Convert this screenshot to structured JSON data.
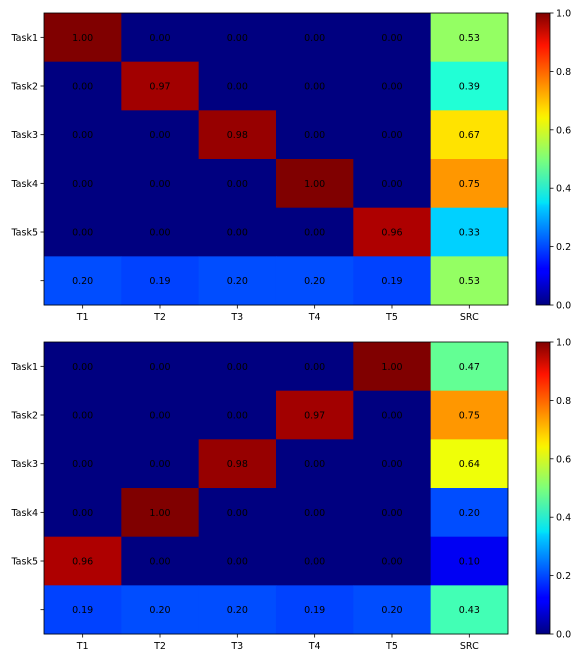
{
  "colorbar": {
    "colormap": "jet",
    "range": [
      0,
      1
    ],
    "tick_labels": [
      "0.0",
      "0.2",
      "0.4",
      "0.6",
      "0.8",
      "1.0"
    ]
  },
  "chart_data": [
    {
      "type": "heatmap",
      "title": "",
      "xlabel": "",
      "ylabel": "",
      "x_categories": [
        "T1",
        "T2",
        "T3",
        "T4",
        "T5",
        "SRC"
      ],
      "y_categories": [
        "Task1",
        "Task2",
        "Task3",
        "Task4",
        "Task5",
        ""
      ],
      "value_range": [
        0,
        1
      ],
      "values": [
        [
          1.0,
          0.0,
          0.0,
          0.0,
          0.0,
          0.53
        ],
        [
          0.0,
          0.97,
          0.0,
          0.0,
          0.0,
          0.39
        ],
        [
          0.0,
          0.0,
          0.98,
          0.0,
          0.0,
          0.67
        ],
        [
          0.0,
          0.0,
          0.0,
          1.0,
          0.0,
          0.75
        ],
        [
          0.0,
          0.0,
          0.0,
          0.0,
          0.96,
          0.33
        ],
        [
          0.2,
          0.19,
          0.2,
          0.2,
          0.19,
          0.53
        ]
      ],
      "value_labels": [
        [
          "1.00",
          "0.00",
          "0.00",
          "0.00",
          "0.00",
          "0.53"
        ],
        [
          "0.00",
          "0.97",
          "0.00",
          "0.00",
          "0.00",
          "0.39"
        ],
        [
          "0.00",
          "0.00",
          "0.98",
          "0.00",
          "0.00",
          "0.67"
        ],
        [
          "0.00",
          "0.00",
          "0.00",
          "1.00",
          "0.00",
          "0.75"
        ],
        [
          "0.00",
          "0.00",
          "0.00",
          "0.00",
          "0.96",
          "0.33"
        ],
        [
          "0.20",
          "0.19",
          "0.20",
          "0.20",
          "0.19",
          "0.53"
        ]
      ]
    },
    {
      "type": "heatmap",
      "title": "",
      "xlabel": "",
      "ylabel": "",
      "x_categories": [
        "T1",
        "T2",
        "T3",
        "T4",
        "T5",
        "SRC"
      ],
      "y_categories": [
        "Task1",
        "Task2",
        "Task3",
        "Task4",
        "Task5",
        ""
      ],
      "value_range": [
        0,
        1
      ],
      "values": [
        [
          0.0,
          0.0,
          0.0,
          0.0,
          1.0,
          0.47
        ],
        [
          0.0,
          0.0,
          0.0,
          0.97,
          0.0,
          0.75
        ],
        [
          0.0,
          0.0,
          0.98,
          0.0,
          0.0,
          0.64
        ],
        [
          0.0,
          1.0,
          0.0,
          0.0,
          0.0,
          0.2
        ],
        [
          0.96,
          0.0,
          0.0,
          0.0,
          0.0,
          0.1
        ],
        [
          0.19,
          0.2,
          0.2,
          0.19,
          0.2,
          0.43
        ]
      ],
      "value_labels": [
        [
          "0.00",
          "0.00",
          "0.00",
          "0.00",
          "1.00",
          "0.47"
        ],
        [
          "0.00",
          "0.00",
          "0.00",
          "0.97",
          "0.00",
          "0.75"
        ],
        [
          "0.00",
          "0.00",
          "0.98",
          "0.00",
          "0.00",
          "0.64"
        ],
        [
          "0.00",
          "1.00",
          "0.00",
          "0.00",
          "0.00",
          "0.20"
        ],
        [
          "0.96",
          "0.00",
          "0.00",
          "0.00",
          "0.00",
          "0.10"
        ],
        [
          "0.19",
          "0.20",
          "0.20",
          "0.19",
          "0.20",
          "0.43"
        ]
      ]
    }
  ]
}
